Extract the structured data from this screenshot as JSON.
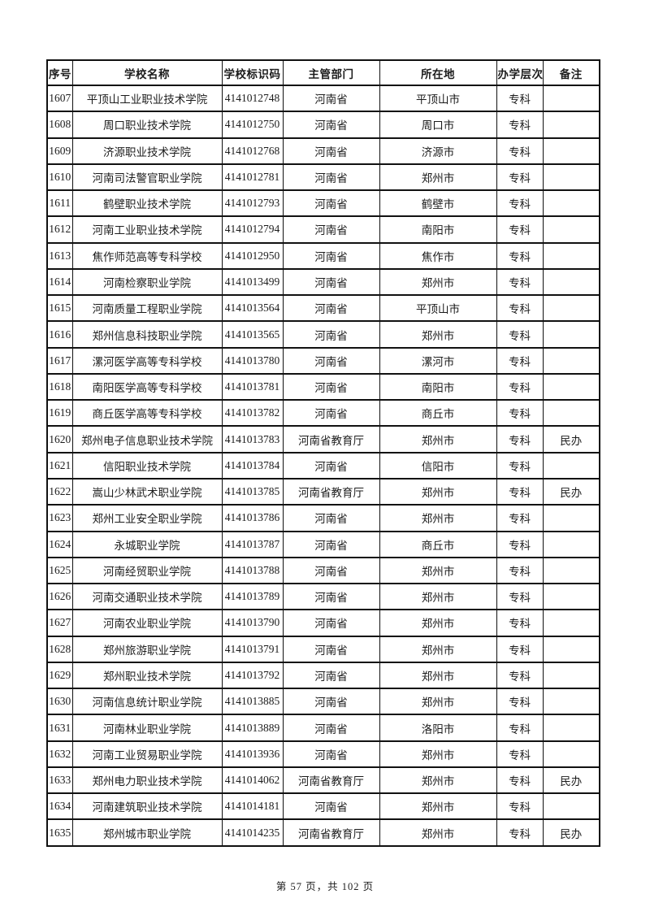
{
  "table": {
    "headers": [
      "序号",
      "学校名称",
      "学校标识码",
      "主管部门",
      "所在地",
      "办学层次",
      "备注"
    ],
    "rows": [
      [
        "1607",
        "平顶山工业职业技术学院",
        "4141012748",
        "河南省",
        "平顶山市",
        "专科",
        ""
      ],
      [
        "1608",
        "周口职业技术学院",
        "4141012750",
        "河南省",
        "周口市",
        "专科",
        ""
      ],
      [
        "1609",
        "济源职业技术学院",
        "4141012768",
        "河南省",
        "济源市",
        "专科",
        ""
      ],
      [
        "1610",
        "河南司法警官职业学院",
        "4141012781",
        "河南省",
        "郑州市",
        "专科",
        ""
      ],
      [
        "1611",
        "鹤壁职业技术学院",
        "4141012793",
        "河南省",
        "鹤壁市",
        "专科",
        ""
      ],
      [
        "1612",
        "河南工业职业技术学院",
        "4141012794",
        "河南省",
        "南阳市",
        "专科",
        ""
      ],
      [
        "1613",
        "焦作师范高等专科学校",
        "4141012950",
        "河南省",
        "焦作市",
        "专科",
        ""
      ],
      [
        "1614",
        "河南检察职业学院",
        "4141013499",
        "河南省",
        "郑州市",
        "专科",
        ""
      ],
      [
        "1615",
        "河南质量工程职业学院",
        "4141013564",
        "河南省",
        "平顶山市",
        "专科",
        ""
      ],
      [
        "1616",
        "郑州信息科技职业学院",
        "4141013565",
        "河南省",
        "郑州市",
        "专科",
        ""
      ],
      [
        "1617",
        "漯河医学高等专科学校",
        "4141013780",
        "河南省",
        "漯河市",
        "专科",
        ""
      ],
      [
        "1618",
        "南阳医学高等专科学校",
        "4141013781",
        "河南省",
        "南阳市",
        "专科",
        ""
      ],
      [
        "1619",
        "商丘医学高等专科学校",
        "4141013782",
        "河南省",
        "商丘市",
        "专科",
        ""
      ],
      [
        "1620",
        "郑州电子信息职业技术学院",
        "4141013783",
        "河南省教育厅",
        "郑州市",
        "专科",
        "民办"
      ],
      [
        "1621",
        "信阳职业技术学院",
        "4141013784",
        "河南省",
        "信阳市",
        "专科",
        ""
      ],
      [
        "1622",
        "嵩山少林武术职业学院",
        "4141013785",
        "河南省教育厅",
        "郑州市",
        "专科",
        "民办"
      ],
      [
        "1623",
        "郑州工业安全职业学院",
        "4141013786",
        "河南省",
        "郑州市",
        "专科",
        ""
      ],
      [
        "1624",
        "永城职业学院",
        "4141013787",
        "河南省",
        "商丘市",
        "专科",
        ""
      ],
      [
        "1625",
        "河南经贸职业学院",
        "4141013788",
        "河南省",
        "郑州市",
        "专科",
        ""
      ],
      [
        "1626",
        "河南交通职业技术学院",
        "4141013789",
        "河南省",
        "郑州市",
        "专科",
        ""
      ],
      [
        "1627",
        "河南农业职业学院",
        "4141013790",
        "河南省",
        "郑州市",
        "专科",
        ""
      ],
      [
        "1628",
        "郑州旅游职业学院",
        "4141013791",
        "河南省",
        "郑州市",
        "专科",
        ""
      ],
      [
        "1629",
        "郑州职业技术学院",
        "4141013792",
        "河南省",
        "郑州市",
        "专科",
        ""
      ],
      [
        "1630",
        "河南信息统计职业学院",
        "4141013885",
        "河南省",
        "郑州市",
        "专科",
        ""
      ],
      [
        "1631",
        "河南林业职业学院",
        "4141013889",
        "河南省",
        "洛阳市",
        "专科",
        ""
      ],
      [
        "1632",
        "河南工业贸易职业学院",
        "4141013936",
        "河南省",
        "郑州市",
        "专科",
        ""
      ],
      [
        "1633",
        "郑州电力职业技术学院",
        "4141014062",
        "河南省教育厅",
        "郑州市",
        "专科",
        "民办"
      ],
      [
        "1634",
        "河南建筑职业技术学院",
        "4141014181",
        "河南省",
        "郑州市",
        "专科",
        ""
      ],
      [
        "1635",
        "郑州城市职业学院",
        "4141014235",
        "河南省教育厅",
        "郑州市",
        "专科",
        "民办"
      ]
    ]
  },
  "footer": {
    "page_info": "第 57 页，共 102 页"
  }
}
